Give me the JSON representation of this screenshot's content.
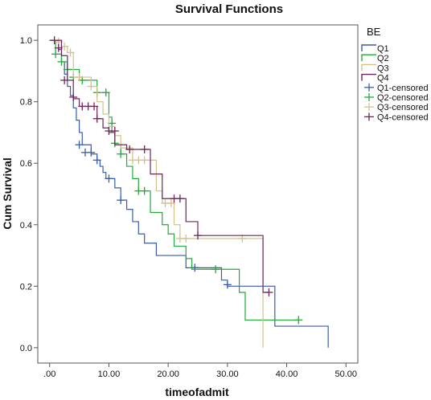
{
  "chart_data": {
    "type": "line",
    "title": "Survival Functions",
    "xlabel": "timeofadmit",
    "ylabel": "Cum Survival",
    "xlim": [
      -2,
      52
    ],
    "ylim": [
      -0.05,
      1.05
    ],
    "x_ticks": [
      0,
      10,
      20,
      30,
      40,
      50
    ],
    "x_tick_labels": [
      ".00",
      "10.00",
      "20.00",
      "30.00",
      "40.00",
      "50.00"
    ],
    "y_ticks": [
      0,
      0.2,
      0.4,
      0.6,
      0.8,
      1.0
    ],
    "y_tick_labels": [
      "0.0",
      "0.2",
      "0.4",
      "0.6",
      "0.8",
      "1.0"
    ],
    "legend_title": "BE",
    "legend_position": "right",
    "series": [
      {
        "name": "Q1",
        "color": "#3a5bab",
        "steps": [
          [
            0,
            1.0
          ],
          [
            1.5,
            0.97
          ],
          [
            2,
            0.93
          ],
          [
            2.5,
            0.89
          ],
          [
            3,
            0.85
          ],
          [
            3.5,
            0.82
          ],
          [
            4,
            0.78
          ],
          [
            4.5,
            0.74
          ],
          [
            5,
            0.7
          ],
          [
            5.5,
            0.66
          ],
          [
            7,
            0.63
          ],
          [
            8,
            0.61
          ],
          [
            8.5,
            0.59
          ],
          [
            9,
            0.57
          ],
          [
            9.5,
            0.55
          ],
          [
            11,
            0.52
          ],
          [
            12,
            0.48
          ],
          [
            13,
            0.45
          ],
          [
            14,
            0.41
          ],
          [
            15,
            0.37
          ],
          [
            16,
            0.34
          ],
          [
            18,
            0.3
          ],
          [
            23,
            0.26
          ],
          [
            29,
            0.22
          ],
          [
            30,
            0.2
          ],
          [
            38,
            0.07
          ],
          [
            47,
            0.0
          ]
        ],
        "end_x": 47,
        "censored": [
          [
            5,
            0.66
          ],
          [
            6,
            0.635
          ],
          [
            7,
            0.635
          ],
          [
            8,
            0.61
          ],
          [
            10,
            0.55
          ],
          [
            12,
            0.48
          ],
          [
            24.5,
            0.26
          ],
          [
            30,
            0.205
          ]
        ]
      },
      {
        "name": "Q2",
        "color": "#22aa3a",
        "steps": [
          [
            0,
            1.0
          ],
          [
            1,
            0.955
          ],
          [
            2,
            0.93
          ],
          [
            3,
            0.905
          ],
          [
            5,
            0.87
          ],
          [
            8,
            0.83
          ],
          [
            10,
            0.75
          ],
          [
            10.5,
            0.7
          ],
          [
            11,
            0.66
          ],
          [
            12,
            0.63
          ],
          [
            13,
            0.59
          ],
          [
            14,
            0.55
          ],
          [
            15,
            0.51
          ],
          [
            17,
            0.44
          ],
          [
            19,
            0.4
          ],
          [
            20,
            0.37
          ],
          [
            21,
            0.33
          ],
          [
            23,
            0.29
          ],
          [
            24,
            0.255
          ],
          [
            32,
            0.18
          ],
          [
            33,
            0.09
          ],
          [
            42,
            0.09
          ]
        ],
        "end_x": 42,
        "censored": [
          [
            1,
            0.955
          ],
          [
            2,
            0.93
          ],
          [
            3,
            0.905
          ],
          [
            4,
            0.88
          ],
          [
            5.5,
            0.87
          ],
          [
            8,
            0.83
          ],
          [
            9.5,
            0.83
          ],
          [
            10.5,
            0.73
          ],
          [
            11,
            0.665
          ],
          [
            12,
            0.63
          ],
          [
            15,
            0.51
          ],
          [
            16,
            0.51
          ],
          [
            28,
            0.255
          ],
          [
            42,
            0.09
          ]
        ]
      },
      {
        "name": "Q3",
        "color": "#d4c089",
        "steps": [
          [
            0,
            1.0
          ],
          [
            2,
            0.98
          ],
          [
            3,
            0.96
          ],
          [
            4,
            0.88
          ],
          [
            7,
            0.85
          ],
          [
            8,
            0.8
          ],
          [
            9,
            0.76
          ],
          [
            10,
            0.72
          ],
          [
            11,
            0.69
          ],
          [
            12,
            0.65
          ],
          [
            14,
            0.61
          ],
          [
            18,
            0.51
          ],
          [
            19,
            0.47
          ],
          [
            21,
            0.4
          ],
          [
            22,
            0.355
          ],
          [
            36,
            0.0
          ]
        ],
        "end_x": 36,
        "censored": [
          [
            1.5,
            0.995
          ],
          [
            2.5,
            0.98
          ],
          [
            3.5,
            0.96
          ],
          [
            5,
            0.88
          ],
          [
            7,
            0.85
          ],
          [
            14,
            0.61
          ],
          [
            15,
            0.61
          ],
          [
            16,
            0.61
          ],
          [
            19.5,
            0.47
          ],
          [
            20.5,
            0.47
          ],
          [
            22,
            0.355
          ],
          [
            23,
            0.355
          ],
          [
            32.5,
            0.355
          ]
        ]
      },
      {
        "name": "Q4",
        "color": "#70245e",
        "steps": [
          [
            0,
            1.0
          ],
          [
            2,
            0.95
          ],
          [
            3,
            0.87
          ],
          [
            4,
            0.81
          ],
          [
            5,
            0.785
          ],
          [
            8,
            0.745
          ],
          [
            9,
            0.715
          ],
          [
            10,
            0.7
          ],
          [
            11,
            0.66
          ],
          [
            13,
            0.645
          ],
          [
            17,
            0.565
          ],
          [
            19,
            0.485
          ],
          [
            23,
            0.41
          ],
          [
            25,
            0.365
          ],
          [
            36,
            0.18
          ],
          [
            37,
            0.18
          ]
        ],
        "end_x": 37,
        "censored": [
          [
            0.8,
            1.0
          ],
          [
            1.5,
            0.975
          ],
          [
            2.5,
            0.87
          ],
          [
            4,
            0.815
          ],
          [
            5.5,
            0.785
          ],
          [
            6.5,
            0.785
          ],
          [
            7.5,
            0.785
          ],
          [
            8,
            0.745
          ],
          [
            10,
            0.705
          ],
          [
            11,
            0.705
          ],
          [
            13.5,
            0.645
          ],
          [
            16,
            0.645
          ],
          [
            21,
            0.485
          ],
          [
            22,
            0.485
          ],
          [
            25,
            0.365
          ],
          [
            37,
            0.18
          ]
        ]
      }
    ],
    "legend_entries": [
      {
        "label": "Q1",
        "kind": "line",
        "color": "#3a5bab"
      },
      {
        "label": "Q2",
        "kind": "line",
        "color": "#22aa3a"
      },
      {
        "label": "Q3",
        "kind": "line",
        "color": "#d4c089"
      },
      {
        "label": "Q4",
        "kind": "line",
        "color": "#70245e"
      },
      {
        "label": "Q1-censored",
        "kind": "marker",
        "color": "#3a5bab"
      },
      {
        "label": "Q2-censored",
        "kind": "marker",
        "color": "#22aa3a"
      },
      {
        "label": "Q3-censored",
        "kind": "marker",
        "color": "#d4c089"
      },
      {
        "label": "Q4-censored",
        "kind": "marker",
        "color": "#70245e"
      }
    ]
  }
}
